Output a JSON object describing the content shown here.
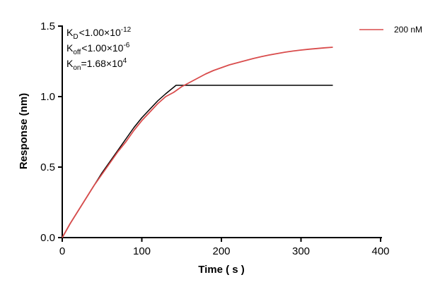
{
  "chart_data": {
    "type": "line",
    "xlabel": "Time ( s )",
    "ylabel": "Response (nm)",
    "xlim": [
      0,
      400
    ],
    "ylim": [
      0,
      1.5
    ],
    "xticks": [
      "0",
      "100",
      "200",
      "300",
      "400"
    ],
    "yticks": [
      "0.0",
      "0.5",
      "1.0",
      "1.5"
    ],
    "xtick_values": [
      0,
      100,
      200,
      300,
      400
    ],
    "ytick_values": [
      0,
      0.5,
      1.0,
      1.5
    ],
    "grid": false,
    "legend_position": "top-right",
    "annotations": {
      "kd": {
        "symbol": "K",
        "sub": "D",
        "rel": "<",
        "mantissa": "1.00×10",
        "exp": "-12"
      },
      "koff": {
        "symbol": "K",
        "sub": "off",
        "rel": "<",
        "mantissa": "1.00×10",
        "exp": "-6"
      },
      "kon": {
        "symbol": "K",
        "sub": "on",
        "rel": "=",
        "mantissa": "1.68×10",
        "exp": "4"
      }
    },
    "series": [
      {
        "name": "200 nM",
        "color": "#d94c4c",
        "x": [
          0,
          10,
          20,
          30,
          40,
          50,
          60,
          70,
          80,
          90,
          100,
          110,
          120,
          130,
          140,
          150,
          160,
          170,
          180,
          190,
          200,
          210,
          220,
          230,
          240,
          250,
          260,
          270,
          280,
          290,
          300,
          310,
          320,
          330,
          340
        ],
        "y": [
          0,
          0.1,
          0.19,
          0.28,
          0.37,
          0.45,
          0.53,
          0.61,
          0.68,
          0.76,
          0.83,
          0.89,
          0.95,
          1.0,
          1.03,
          1.07,
          1.1,
          1.13,
          1.16,
          1.185,
          1.205,
          1.225,
          1.24,
          1.255,
          1.27,
          1.283,
          1.295,
          1.305,
          1.315,
          1.323,
          1.33,
          1.336,
          1.341,
          1.346,
          1.35
        ]
      },
      {
        "name": "",
        "color": "#000000",
        "x": [
          0,
          10,
          20,
          30,
          40,
          50,
          60,
          70,
          80,
          90,
          100,
          110,
          120,
          130,
          143,
          150,
          200,
          250,
          300,
          340
        ],
        "y": [
          0,
          0.1,
          0.19,
          0.28,
          0.37,
          0.46,
          0.54,
          0.62,
          0.7,
          0.78,
          0.85,
          0.91,
          0.97,
          1.02,
          1.08,
          1.08,
          1.08,
          1.08,
          1.08,
          1.08
        ]
      }
    ]
  }
}
